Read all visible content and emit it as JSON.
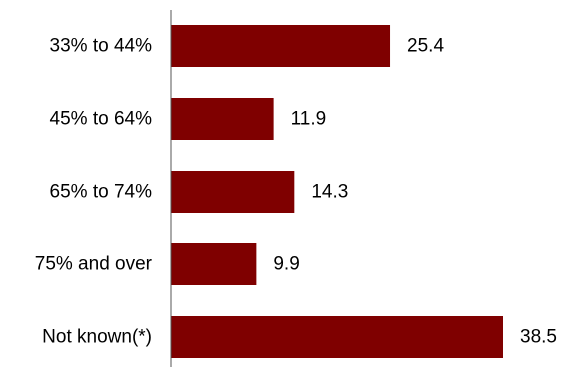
{
  "chart_data": {
    "type": "bar",
    "orientation": "horizontal",
    "title": "",
    "xlabel": "",
    "ylabel": "",
    "categories": [
      "33% to 44%",
      "45% to 64%",
      "65% to 74%",
      "75% and over",
      "Not known(*)"
    ],
    "values": [
      25.4,
      11.9,
      14.3,
      9.9,
      38.5
    ],
    "value_labels": [
      "25.4",
      "11.9",
      "14.3",
      "9.9",
      "38.5"
    ],
    "xlim": [
      0,
      38.5
    ],
    "grid": false,
    "legend": "none",
    "colors": {
      "bar": "#7f0000",
      "axis": "#555555",
      "text": "#000000"
    }
  }
}
